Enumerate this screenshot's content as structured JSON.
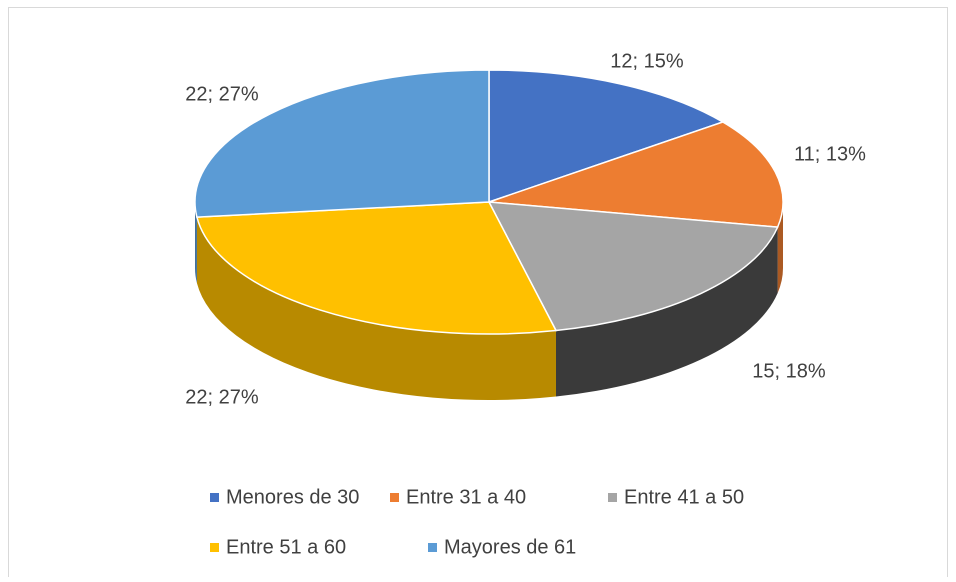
{
  "chart_data": {
    "type": "pie",
    "categories": [
      "Menores de 30",
      "Entre 31 a 40",
      "Entre 41 a 50",
      "Entre 51 a 60",
      "Mayores de 61"
    ],
    "values": [
      12,
      11,
      15,
      22,
      22
    ],
    "value_labels": [
      "12; 15%",
      "11; 13%",
      "15; 18%",
      "22; 27%",
      "22; 27%"
    ],
    "colors": [
      "#4472c4",
      "#ed7d31",
      "#a5a5a5",
      "#ffc000",
      "#5b9bd5"
    ],
    "legend": "bottom"
  }
}
